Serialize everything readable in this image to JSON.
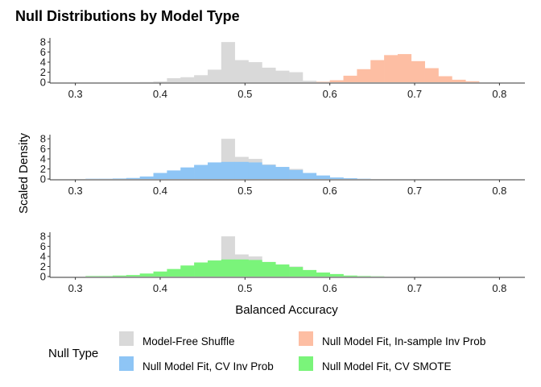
{
  "chart_data": {
    "type": "histogram",
    "title": "Null Distributions by Model Type",
    "xlabel": "Balanced Accuracy",
    "ylabel": "Scaled Density",
    "xlim": [
      0.27,
      0.83
    ],
    "ylim": [
      0,
      8.5
    ],
    "x_ticks": [
      "0.3",
      "0.4",
      "0.5",
      "0.6",
      "0.7",
      "0.8"
    ],
    "y_ticks": [
      "0",
      "2",
      "4",
      "6",
      "8"
    ],
    "bin_width": 0.016,
    "bin_edges": [
      0.312,
      0.328,
      0.344,
      0.36,
      0.376,
      0.392,
      0.408,
      0.424,
      0.44,
      0.456,
      0.472,
      0.488,
      0.504,
      0.52,
      0.536,
      0.552,
      0.568,
      0.584,
      0.6,
      0.616,
      0.632,
      0.648,
      0.664,
      0.68,
      0.696,
      0.712,
      0.728,
      0.744,
      0.76,
      0.776,
      0.792
    ],
    "series": [
      {
        "name": "Model-Free Shuffle",
        "color": "#d9d9d9",
        "values": [
          0,
          0,
          0,
          0,
          0.05,
          0.15,
          0.8,
          1.0,
          1.4,
          2.5,
          8.0,
          4.4,
          4.0,
          2.9,
          2.3,
          2.0,
          0.3,
          0.05,
          0,
          0,
          0,
          0,
          0,
          0,
          0,
          0,
          0,
          0,
          0,
          0
        ]
      },
      {
        "name": "Null Model Fit, In-sample Inv Prob",
        "color": "#fdbea3",
        "values": [
          0,
          0,
          0,
          0,
          0,
          0,
          0,
          0,
          0,
          0,
          0,
          0,
          0,
          0,
          0,
          0,
          0,
          0.1,
          0.4,
          1.3,
          2.6,
          4.4,
          5.4,
          5.6,
          4.2,
          2.8,
          1.2,
          0.5,
          0.2,
          0
        ]
      },
      {
        "name": "Null Model Fit, CV Inv Prob",
        "color": "#8ec5f5",
        "values": [
          0.05,
          0.05,
          0.1,
          0.2,
          0.5,
          1.2,
          1.7,
          2.3,
          2.8,
          3.3,
          3.4,
          3.4,
          3.3,
          2.8,
          2.4,
          1.8,
          1.2,
          0.7,
          0.3,
          0.15,
          0.05,
          0,
          0,
          0,
          0,
          0,
          0,
          0,
          0,
          0
        ]
      },
      {
        "name": "Null Model Fit, CV SMOTE",
        "color": "#7af47a",
        "values": [
          0.1,
          0.1,
          0.2,
          0.3,
          0.6,
          1.0,
          1.5,
          2.2,
          2.8,
          3.2,
          3.4,
          3.4,
          3.3,
          2.9,
          2.4,
          1.9,
          1.3,
          0.8,
          0.5,
          0.2,
          0.1,
          0.05,
          0,
          0,
          0,
          0,
          0,
          0,
          0,
          0
        ]
      }
    ],
    "panels": [
      {
        "series": [
          0,
          1
        ]
      },
      {
        "series": [
          0,
          2
        ]
      },
      {
        "series": [
          0,
          3
        ]
      }
    ],
    "legend": {
      "title": "Null Type",
      "position": "bottom",
      "items": [
        "Model-Free Shuffle",
        "Null Model Fit, In-sample Inv Prob",
        "Null Model Fit, CV Inv Prob",
        "Null Model Fit, CV SMOTE"
      ]
    },
    "grid": false
  }
}
